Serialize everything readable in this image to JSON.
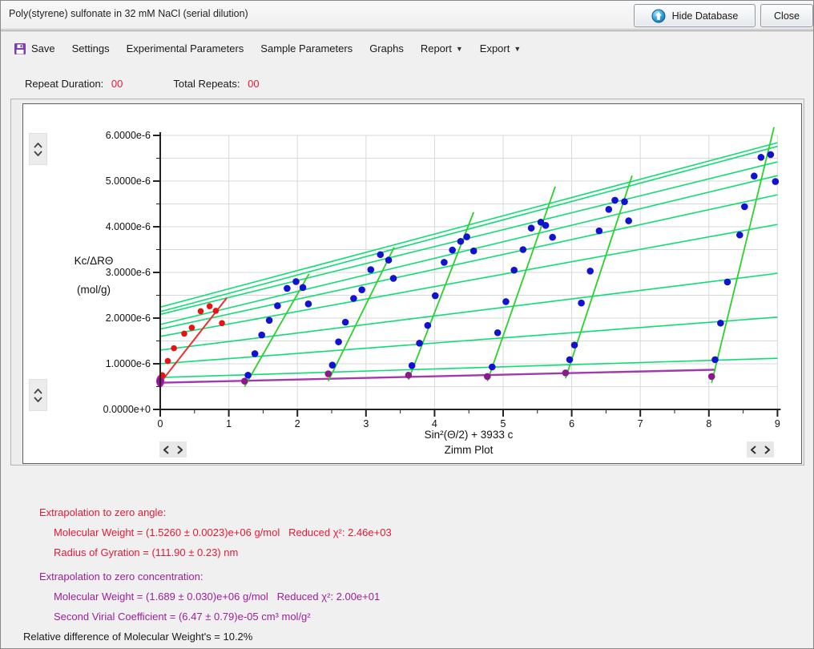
{
  "window": {
    "title": "Poly(styrene) sulfonate in 32 mM NaCl (serial dilution)",
    "hide_database_label": "Hide Database",
    "close_label": "Close"
  },
  "toolbar": {
    "items": [
      "Save",
      "Settings",
      "Experimental Parameters",
      "Sample Parameters",
      "Graphs",
      "Report",
      "Export"
    ]
  },
  "status": {
    "repeat_duration_label": "Repeat Duration:",
    "repeat_duration_value": "00",
    "total_repeats_label": "Total Repeats:",
    "total_repeats_value": "00"
  },
  "chart_data": {
    "type": "scatter",
    "title": "Zimm Plot",
    "xlabel": "Sin²(Θ/2) + 3933 c",
    "ylabel_lines": [
      "Kc/ΔRΘ",
      "(mol/g)"
    ],
    "xlim": [
      0,
      9
    ],
    "ylim_e6": [
      0,
      6
    ],
    "x_tick_labels": [
      "0",
      "1",
      "2",
      "3",
      "4",
      "5",
      "6",
      "7",
      "8",
      "9"
    ],
    "y_tick_labels": [
      "0.0000e+0",
      "1.0000e-6",
      "2.0000e-6",
      "3.0000e-6",
      "4.0000e-6",
      "5.0000e-6",
      "6.0000e-6"
    ],
    "grid": true,
    "y_unit_scale": "values in 1e-6 mol/g",
    "colors": {
      "grid": "#d8d8d8",
      "axis": "#222222",
      "iso_angle_line": "#0fdd74",
      "concentration_fit_line": "#2ad22a",
      "red_point": "#e81414",
      "red_line": "#f22c2c",
      "blue_point": "#1212d0",
      "purple_point": "#8b1a8b",
      "purple_line": "#a23aaa",
      "origin_blob": "#c211c2"
    },
    "series": [
      {
        "name": "zero-concentration extrapolated (red)",
        "marker": "red",
        "x": [
          0.03,
          0.11,
          0.2,
          0.35,
          0.46,
          0.59,
          0.72,
          0.81,
          0.9
        ],
        "y_e6": [
          0.75,
          1.06,
          1.34,
          1.66,
          1.79,
          2.15,
          2.26,
          2.16,
          1.89
        ]
      },
      {
        "name": "concentration 1",
        "marker": "blue",
        "x": [
          1.28,
          1.38,
          1.48,
          1.59,
          1.71,
          1.85,
          1.98,
          2.08,
          2.16
        ],
        "y_e6": [
          0.75,
          1.22,
          1.63,
          1.95,
          2.27,
          2.65,
          2.8,
          2.67,
          2.31
        ]
      },
      {
        "name": "concentration 2",
        "marker": "blue",
        "x": [
          2.51,
          2.6,
          2.7,
          2.82,
          2.94,
          3.07,
          3.21,
          3.33,
          3.4
        ],
        "y_e6": [
          0.97,
          1.48,
          1.91,
          2.43,
          2.62,
          3.06,
          3.39,
          3.27,
          2.87
        ]
      },
      {
        "name": "concentration 3",
        "marker": "blue",
        "x": [
          3.67,
          3.78,
          3.9,
          4.01,
          4.14,
          4.26,
          4.38,
          4.47,
          4.57
        ],
        "y_e6": [
          0.96,
          1.45,
          1.84,
          2.49,
          3.22,
          3.49,
          3.68,
          3.78,
          3.47
        ]
      },
      {
        "name": "concentration 4",
        "marker": "blue",
        "x": [
          4.84,
          4.92,
          5.04,
          5.16,
          5.29,
          5.41,
          5.55,
          5.62,
          5.72
        ],
        "y_e6": [
          0.93,
          1.68,
          2.36,
          3.05,
          3.5,
          3.97,
          4.1,
          4.03,
          3.77
        ]
      },
      {
        "name": "concentration 5",
        "marker": "blue",
        "x": [
          5.97,
          6.04,
          6.14,
          6.27,
          6.4,
          6.54,
          6.63,
          6.77,
          6.83
        ],
        "y_e6": [
          1.09,
          1.41,
          2.33,
          3.03,
          3.91,
          4.38,
          4.58,
          4.55,
          4.13
        ]
      },
      {
        "name": "concentration 6",
        "marker": "blue",
        "x": [
          8.09,
          8.17,
          8.27,
          8.45,
          8.52,
          8.66,
          8.76,
          8.9,
          8.97
        ],
        "y_e6": [
          1.09,
          1.89,
          2.79,
          3.82,
          4.44,
          5.11,
          5.52,
          5.58,
          4.99
        ]
      },
      {
        "name": "zero-angle extrapolated (purple)",
        "marker": "purple",
        "x": [
          0.0,
          1.23,
          2.45,
          3.62,
          4.77,
          5.91,
          8.04
        ],
        "y_e6": [
          0.62,
          0.62,
          0.78,
          0.75,
          0.72,
          0.8,
          0.72
        ]
      }
    ],
    "fit_lines": {
      "red_zero_concentration": [
        0,
        0.58,
        0.97,
        2.44
      ],
      "purple_zero_angle": [
        0,
        0.585,
        8.1,
        0.87
      ],
      "steep_concentration_fits": [
        [
          1.23,
          0.5,
          2.17,
          2.97
        ],
        [
          2.45,
          0.62,
          3.41,
          3.55
        ],
        [
          3.62,
          0.65,
          4.57,
          4.32
        ],
        [
          4.77,
          0.62,
          5.76,
          4.88
        ],
        [
          5.91,
          0.68,
          6.88,
          5.12
        ],
        [
          8.04,
          0.58,
          8.95,
          6.18
        ]
      ],
      "iso_angle_fits": [
        [
          0,
          0.7,
          9,
          1.12
        ],
        [
          0,
          1.0,
          9,
          2.02
        ],
        [
          0,
          1.3,
          9,
          2.98
        ],
        [
          0,
          1.6,
          9,
          4.05
        ],
        [
          0,
          1.76,
          9,
          4.7
        ],
        [
          0,
          2.08,
          9,
          5.42
        ],
        [
          0,
          2.24,
          9,
          5.84
        ],
        [
          0,
          2.14,
          9,
          5.76
        ],
        [
          0,
          1.86,
          9,
          5.12
        ]
      ]
    },
    "origin_cluster": {
      "x": 0,
      "y_e6": 0.62
    }
  },
  "results": {
    "zero_angle": {
      "heading": "Extrapolation to zero angle:",
      "mw": "Molecular Weight = (1.5260 ± 0.0023)e+06 g/mol   Reduced χ²: 2.46e+03",
      "rg": "Radius of Gyration = (111.90 ± 0.23) nm"
    },
    "zero_concentration": {
      "heading": "Extrapolation to zero concentration:",
      "mw": "Molecular Weight = (1.689 ± 0.030)e+06 g/mol   Reduced χ²: 2.00e+01",
      "a2": "Second Virial Coefficient = (6.47 ± 0.79)e-05 cm³ mol/g²"
    },
    "relative_difference": "Relative difference of Molecular Weight's = 10.2%"
  }
}
